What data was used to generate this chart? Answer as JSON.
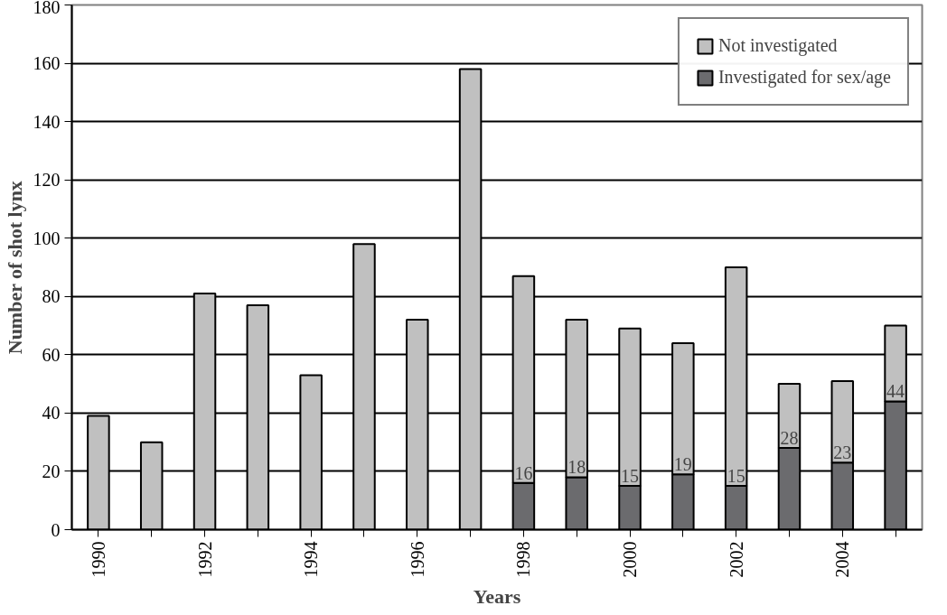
{
  "chart_data": {
    "type": "bar",
    "stacked": true,
    "xlabel": "Years",
    "ylabel": "Number of shot lynx",
    "categories": [
      "1990",
      null,
      "1992",
      null,
      "1994",
      null,
      "1996",
      null,
      "1998",
      null,
      "2000",
      null,
      "2002",
      null,
      "2004",
      null
    ],
    "series": [
      {
        "name": "Investigated for sex/age",
        "color": "#6b6b6e",
        "values": [
          null,
          null,
          null,
          null,
          null,
          null,
          null,
          null,
          16,
          18,
          15,
          19,
          15,
          28,
          23,
          44
        ],
        "value_labels": [
          null,
          null,
          null,
          null,
          null,
          null,
          null,
          null,
          "16",
          "18",
          "15",
          "19",
          "15",
          "28",
          "23",
          "44"
        ]
      },
      {
        "name": "Not investigated",
        "color": "#c0c0c0",
        "values": [
          39,
          30,
          81,
          77,
          53,
          98,
          72,
          158,
          71,
          54,
          54,
          45,
          75,
          22,
          28,
          26
        ]
      }
    ],
    "ylim": [
      0,
      180
    ],
    "yticks": [
      0,
      20,
      40,
      60,
      80,
      100,
      120,
      140,
      160,
      180
    ],
    "grid": "y",
    "legend": "top right"
  }
}
